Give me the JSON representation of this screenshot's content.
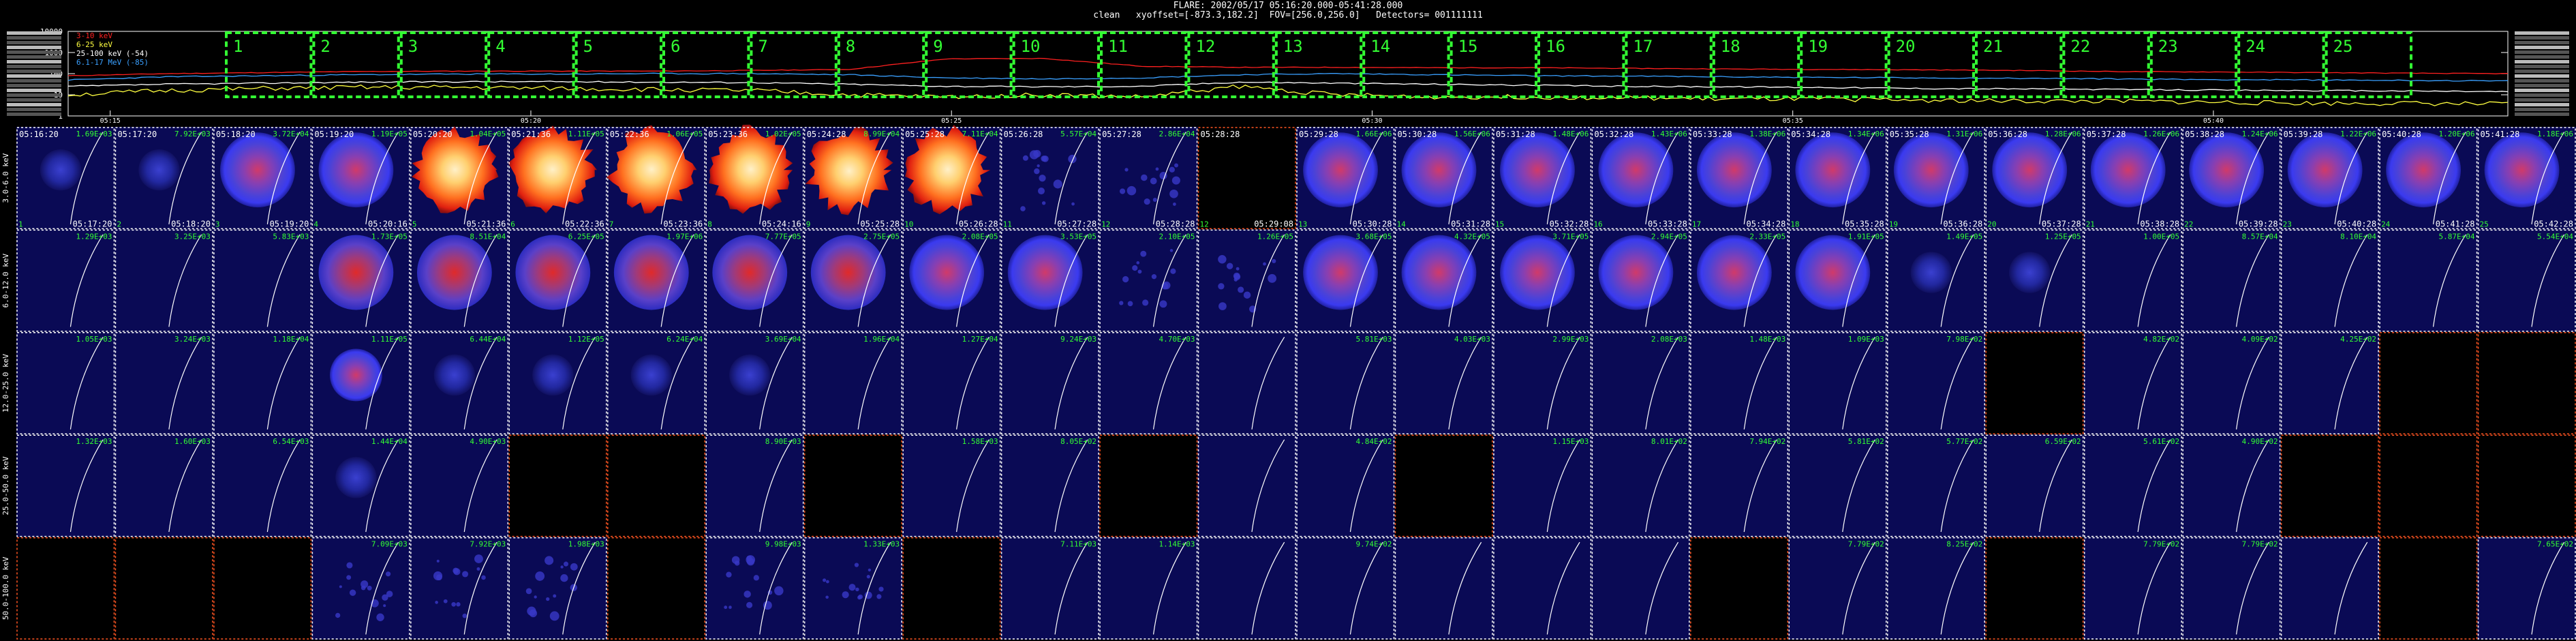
{
  "header": {
    "title": "FLARE: 2002/05/17 05:16:20.000-05:41:28.000",
    "subtitle_method": "clean",
    "subtitle_offset": "xyoffset=[-873.3,182.2]",
    "subtitle_fov": "FOV=[256.0,256.0]",
    "subtitle_detectors": "Detectors= 001111111"
  },
  "colors": {
    "band1": "#ff2020",
    "band2": "#ffff40",
    "band3": "#ffffff",
    "band4": "#3aa0ff",
    "green": "#33ff33",
    "panel_border": "#ffffff",
    "panel_border_empty": "#ff5522",
    "grid": "#888888"
  },
  "chart_data": {
    "type": "line",
    "lightcurve": {
      "yticks": [
        "10000",
        "1000",
        "100",
        "10",
        "1"
      ],
      "time_ticks": [
        "05:15",
        "05:20",
        "05:25",
        "05:30",
        "05:35",
        "05:40"
      ],
      "legend": [
        {
          "label": "3-10 keV"
        },
        {
          "label": "6-25 keV"
        },
        {
          "label": "25-100 keV (-54)"
        },
        {
          "label": "6.1-17 MeV (-85)"
        }
      ],
      "intervals": [
        "1",
        "2",
        "3",
        "4",
        "5",
        "6",
        "7",
        "8",
        "9",
        "10",
        "11",
        "12",
        "13",
        "14",
        "15",
        "16",
        "17",
        "18",
        "19",
        "20",
        "21",
        "22",
        "23",
        "24",
        "25"
      ]
    },
    "image_grid": {
      "energy_bands": [
        "3.0-6.0 keV",
        "6.0-12.0 keV",
        "12.0-25.0 keV",
        "25.0-50.0 keV",
        "50.0-100.0 keV"
      ],
      "start_times": [
        "05:16:20",
        "05:17:20",
        "05:18:20",
        "05:19:20",
        "05:20:20",
        "05:21:36",
        "05:22:36",
        "05:23:36",
        "05:24:28",
        "05:25:28",
        "05:26:28",
        "05:27:28",
        "05:28:28",
        "05:29:28",
        "05:30:28",
        "05:31:28",
        "05:32:28",
        "05:33:28",
        "05:34:28",
        "05:35:28",
        "05:36:28",
        "05:37:28",
        "05:38:28",
        "05:39:28",
        "05:40:28",
        "05:41:28"
      ],
      "end_times": [
        "05:17:20",
        "05:18:20",
        "05:19:20",
        "05:20:16",
        "05:21:36",
        "05:22:36",
        "05:23:36",
        "05:24:16",
        "05:25:28",
        "05:26:28",
        "05:27:28",
        "05:28:28",
        "05:29:08",
        "05:30:28",
        "05:31:28",
        "05:32:28",
        "05:33:28",
        "05:34:28",
        "05:35:28",
        "05:36:28",
        "05:37:28",
        "05:38:28",
        "05:39:28",
        "05:40:28",
        "05:41:28",
        "05:42:28"
      ],
      "interval_numbers": [
        "1",
        "2",
        "3",
        "4",
        "5",
        "6",
        "7",
        "8",
        "9",
        "10",
        "11",
        "12",
        "12",
        "13",
        "14",
        "15",
        "16",
        "17",
        "18",
        "19",
        "20",
        "21",
        "22",
        "23",
        "24",
        "25"
      ],
      "rows": [
        [
          "1.69E+03",
          "7.92E+03",
          "3.72E+04",
          "1.19E+05",
          "1.04E+05",
          "1.11E+05",
          "1.06E+05",
          "1.02E+05",
          "8.99E+04",
          "7.11E+04",
          "5.57E+04",
          "2.86E+04",
          "",
          "1.66E+06",
          "1.56E+06",
          "1.48E+06",
          "1.43E+06",
          "1.38E+06",
          "1.34E+06",
          "1.31E+06",
          "1.28E+06",
          "1.26E+06",
          "1.24E+06",
          "1.22E+06",
          "1.20E+06",
          "1.18E+06"
        ],
        [
          "1.29E+03",
          "3.25E+03",
          "5.83E+03",
          "1.73E+05",
          "8.51E+04",
          "6.25E+05",
          "1.97E+06",
          "7.77E+05",
          "2.75E+05",
          "2.08E+05",
          "3.53E+05",
          "2.10E+05",
          "1.26E+05",
          "3.68E+05",
          "4.32E+05",
          "3.71E+05",
          "2.94E+05",
          "2.33E+05",
          "1.91E+05",
          "1.49E+05",
          "1.25E+05",
          "1.00E+05",
          "8.57E+04",
          "8.10E+04",
          "5.87E+04",
          "5.54E+04"
        ],
        [
          "1.05E+03",
          "3.24E+03",
          "1.18E+04",
          "1.11E+05",
          "6.44E+04",
          "1.12E+05",
          "6.24E+04",
          "3.69E+04",
          "1.96E+04",
          "1.27E+04",
          "9.24E+03",
          "4.70E+03",
          "",
          "5.81E+03",
          "4.03E+03",
          "2.99E+03",
          "2.08E+03",
          "1.48E+03",
          "1.09E+03",
          "7.98E+02",
          "",
          "4.82E+02",
          "4.09E+02",
          "4.25E+02",
          "",
          ""
        ],
        [
          "1.32E+03",
          "1.60E+03",
          "6.54E+03",
          "1.44E+04",
          "4.90E+03",
          "",
          "",
          "8.90E+03",
          "",
          "1.58E+03",
          "8.05E+02",
          "",
          "",
          "4.84E+02",
          "",
          "1.15E+03",
          "8.01E+02",
          "7.94E+02",
          "5.81E+02",
          "5.77E+02",
          "6.59E+02",
          "5.61E+02",
          "4.90E+02",
          "",
          "",
          ""
        ],
        [
          "",
          "",
          "",
          "7.09E+03",
          "7.92E+03",
          "1.98E+03",
          "",
          "9.98E+03",
          "1.33E+03",
          "",
          "7.11E+03",
          "1.14E+03",
          "",
          "9.74E+02",
          "",
          "",
          "",
          "",
          "7.79E+02",
          "8.25E+02",
          "",
          "7.79E+02",
          "7.79E+02",
          "",
          "",
          "7.65E+02"
        ]
      ],
      "image_types": [
        [
          "faint",
          "faint",
          "blob",
          "blobtop",
          "hot",
          "hot",
          "hot",
          "hot",
          "hot",
          "hot",
          "speck",
          "speck",
          "none",
          "blob",
          "blob",
          "blob",
          "blob",
          "blob",
          "blob",
          "blob",
          "blob",
          "blob",
          "blob",
          "blob",
          "blob",
          "blob"
        ],
        [
          "dark",
          "dark",
          "dark",
          "mid",
          "mid",
          "mid",
          "mid",
          "mid",
          "mid",
          "blob",
          "blob",
          "speck",
          "speck",
          "blob",
          "blob",
          "blob",
          "blob",
          "blob",
          "blob",
          "faint",
          "faint",
          "dark",
          "dark",
          "dark",
          "dark",
          "dark"
        ],
        [
          "dark",
          "dark",
          "dark",
          "blobsmall",
          "faint",
          "faint",
          "faint",
          "faint",
          "dark",
          "dark",
          "dark",
          "dark",
          "dark",
          "dark",
          "dark",
          "dark",
          "dark",
          "dark",
          "dark",
          "dark",
          "none",
          "dark",
          "dark",
          "dark",
          "none",
          "none"
        ],
        [
          "dark",
          "dark",
          "dark",
          "faint",
          "dark",
          "none",
          "none",
          "dark",
          "none",
          "dark",
          "dark",
          "none",
          "dark",
          "dark",
          "none",
          "dark",
          "dark",
          "dark",
          "dark",
          "dark",
          "dark",
          "dark",
          "dark",
          "none",
          "none",
          "none"
        ],
        [
          "none",
          "none",
          "none",
          "speck",
          "speck",
          "speck",
          "none",
          "speck",
          "speck",
          "none",
          "dark",
          "dark",
          "dark",
          "dark",
          "dark",
          "dark",
          "dark",
          "none",
          "dark",
          "dark",
          "none",
          "dark",
          "dark",
          "dark",
          "none",
          "dark"
        ]
      ]
    }
  }
}
